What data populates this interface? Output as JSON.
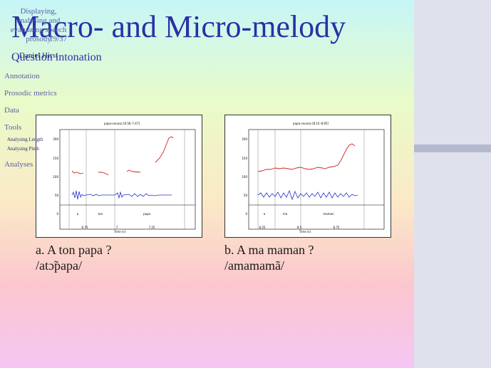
{
  "slide": {
    "title": "Macro- and Micro-melody",
    "subtitle": "Question intonation"
  },
  "figures": [
    {
      "plot_title": "papa-ceunsa [6.56–7.47]",
      "y_ticks": [
        "200",
        "150",
        "100",
        "50",
        "0"
      ],
      "x_ticks": [
        "6.75",
        "7",
        "7.25"
      ],
      "x_axis_label": "Time (s)",
      "segments": [
        "a",
        "ton",
        "papa"
      ],
      "caption_line1": "a.  A ton papa ?",
      "caption_line2": "/atɔ̃papa/"
    },
    {
      "plot_title": "papa-ceunsa [8.15–8.95]",
      "y_ticks": [
        "200",
        "150",
        "100",
        "50",
        "0"
      ],
      "x_ticks": [
        "8.25",
        "8.5",
        "8.75"
      ],
      "x_axis_label": "Time (s)",
      "segments": [
        "a",
        "ma",
        "maman"
      ],
      "caption_line1": "b.  A ma maman ?",
      "caption_line2": "/amamamã/"
    }
  ],
  "sidebar": {
    "header": "Displaying, analysing and evaluating speech prosody",
    "page": "19/37",
    "author": "Daniel Hirst",
    "items": [
      "Annotation",
      "Prosodic metrics",
      "Data",
      "Tools"
    ],
    "subitems": [
      "Analysing Length",
      "Analysing Pitch"
    ],
    "items_after": [
      "Analyses"
    ]
  },
  "colors": {
    "title": "#2a2fa8",
    "pitch": "#d22222",
    "wave": "#2233cc"
  }
}
